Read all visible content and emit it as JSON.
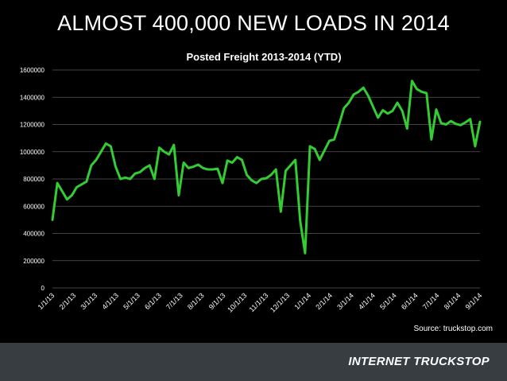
{
  "slide": {
    "headline": "ALMOST 400,000 NEW LOADS IN 2014",
    "source": "Source: truckstop.com",
    "logo": "INTERNET TRUCKSTOP"
  },
  "colors": {
    "background": "#000000",
    "line": "#33cc33",
    "grid": "#5a5a5a",
    "footer": "#383d42"
  },
  "chart_data": {
    "type": "line",
    "title": "Posted Freight 2013-2014 (YTD)",
    "xlabel": "",
    "ylabel": "",
    "ylim": [
      0,
      1600000
    ],
    "yticks": [
      0,
      200000,
      400000,
      600000,
      800000,
      1000000,
      1200000,
      1400000,
      1600000
    ],
    "xtick_labels": [
      "1/1/13",
      "2/1/13",
      "3/1/13",
      "4/1/13",
      "5/1/13",
      "6/1/13",
      "7/1/13",
      "8/1/13",
      "9/1/13",
      "10/1/13",
      "11/1/13",
      "12/1/13",
      "1/1/14",
      "2/1/14",
      "3/1/14",
      "4/1/14",
      "5/1/14",
      "6/1/14",
      "7/1/14",
      "8/1/14",
      "9/1/14"
    ],
    "grid": true,
    "legend": "none",
    "series": [
      {
        "values": [
          500000,
          770000,
          710000,
          650000,
          680000,
          740000,
          760000,
          780000,
          900000,
          940000,
          1000000,
          1060000,
          1040000,
          890000,
          800000,
          810000,
          800000,
          840000,
          850000,
          880000,
          900000,
          800000,
          1030000,
          1000000,
          980000,
          1050000,
          680000,
          920000,
          880000,
          890000,
          905000,
          880000,
          870000,
          870000,
          875000,
          770000,
          935000,
          920000,
          960000,
          940000,
          830000,
          790000,
          770000,
          800000,
          805000,
          830000,
          870000,
          560000,
          860000,
          900000,
          940000,
          490000,
          255000,
          1040000,
          1020000,
          940000,
          1010000,
          1080000,
          1090000,
          1200000,
          1320000,
          1360000,
          1420000,
          1440000,
          1470000,
          1410000,
          1330000,
          1250000,
          1305000,
          1280000,
          1300000,
          1360000,
          1300000,
          1170000,
          1520000,
          1460000,
          1440000,
          1430000,
          1090000,
          1310000,
          1210000,
          1200000,
          1225000,
          1205000,
          1195000,
          1215000,
          1240000,
          1040000,
          1220000
        ]
      }
    ]
  }
}
